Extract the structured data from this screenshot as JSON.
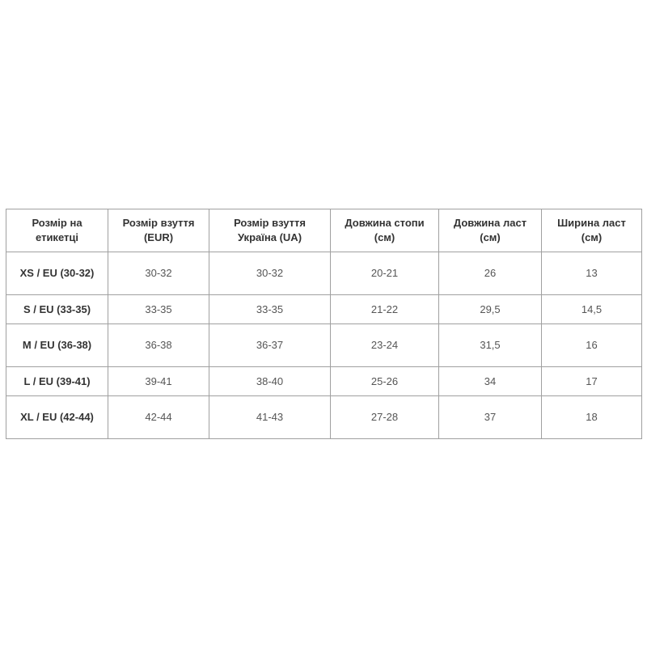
{
  "table": {
    "headers": [
      "Розмір на етикетці",
      "Розмір взуття (EUR)",
      "Розмір взуття Україна (UA)",
      "Довжина стопи (см)",
      "Довжина ласт (см)",
      "Ширина ласт (см)"
    ],
    "rows": [
      [
        "XS / EU (30-32)",
        "30-32",
        "30-32",
        "20-21",
        "26",
        "13"
      ],
      [
        "S / EU (33-35)",
        "33-35",
        "33-35",
        "21-22",
        "29,5",
        "14,5"
      ],
      [
        "M / EU (36-38)",
        "36-38",
        "36-37",
        "23-24",
        "31,5",
        "16"
      ],
      [
        "L / EU (39-41)",
        "39-41",
        "38-40",
        "25-26",
        "34",
        "17"
      ],
      [
        "XL / EU (42-44)",
        "42-44",
        "41-43",
        "27-28",
        "37",
        "18"
      ]
    ]
  }
}
